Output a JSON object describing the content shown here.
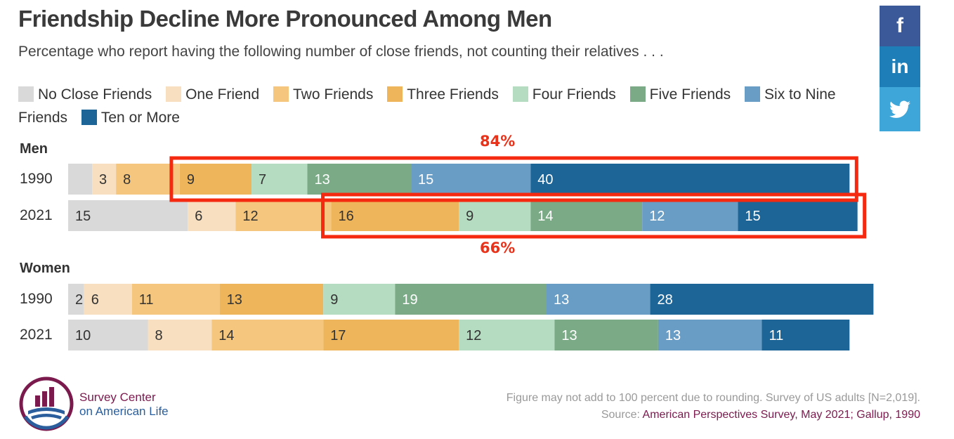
{
  "title": "Friendship Decline More Pronounced Among Men",
  "subtitle": "Percentage who report having the following number of close friends, not counting their relatives . . .",
  "colors": {
    "No Close Friends": "#d9d9d9",
    "One Friend": "#f7dfc0",
    "Two Friends": "#f5c77e",
    "Three Friends": "#eeb55a",
    "Four Friends": "#b5dcc1",
    "Five Friends": "#7aab86",
    "Six to Nine Friends": "#6a9dc6",
    "Ten or More": "#1e6597",
    "highlight": "#f5290f"
  },
  "chart_data": {
    "type": "bar",
    "orientation": "horizontal",
    "stacked": true,
    "title": "Friendship Decline More Pronounced Among Men",
    "subtitle": "Percentage who report having the following number of close friends, not counting their relatives . . .",
    "series_names": [
      "No Close Friends",
      "One Friend",
      "Two Friends",
      "Three Friends",
      "Four Friends",
      "Five Friends",
      "Six to Nine Friends",
      "Ten or More"
    ],
    "groups": [
      {
        "name": "Men",
        "rows": [
          {
            "year": "1990",
            "values": [
              3,
              3,
              8,
              9,
              7,
              13,
              15,
              40
            ]
          },
          {
            "year": "2021",
            "values": [
              15,
              6,
              12,
              16,
              9,
              14,
              12,
              15
            ]
          }
        ]
      },
      {
        "name": "Women",
        "rows": [
          {
            "year": "1990",
            "values": [
              2,
              6,
              11,
              13,
              9,
              19,
              13,
              28
            ]
          },
          {
            "year": "2021",
            "values": [
              10,
              8,
              14,
              17,
              12,
              13,
              13,
              11
            ]
          }
        ]
      }
    ],
    "value_labels_hidden": [
      [
        0,
        0,
        0
      ]
    ],
    "annotations": [
      {
        "label": "84%",
        "group": "Men",
        "year": "1990",
        "from_series": "Three Friends"
      },
      {
        "label": "66%",
        "group": "Men",
        "year": "2021",
        "from_series": "Three Friends"
      }
    ],
    "legend": {
      "position": "top"
    }
  },
  "social": {
    "facebook": "f",
    "linkedin": "in"
  },
  "logo": {
    "line1": "Survey Center",
    "line2": "on American Life"
  },
  "footnote": {
    "line1": "Figure may not add to 100 percent due to rounding. Survey of US adults [N=2,019].",
    "source_prefix": "Source:",
    "source_text": "American Perspectives Survey, May 2021; Gallup, 1990"
  }
}
